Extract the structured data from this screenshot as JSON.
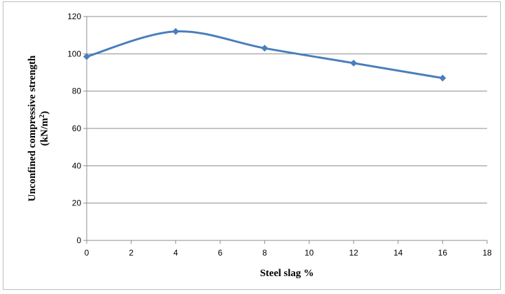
{
  "chart_data": {
    "type": "line",
    "smooth": true,
    "x": [
      0,
      4,
      8,
      12,
      16
    ],
    "series": [
      {
        "values": [
          98.5,
          112,
          103,
          95,
          87
        ],
        "color": "#4a7ebb",
        "marker": "diamond"
      }
    ],
    "xlabel": "Steel slag %",
    "ylabel_line1": "Unconfined  compressive strength",
    "ylabel_line2_base": "(kN/m",
    "ylabel_line2_sup": "2",
    "ylabel_line2_end": ")",
    "xlim": [
      0,
      18
    ],
    "ylim": [
      0,
      120
    ],
    "xticks": [
      0,
      2,
      4,
      6,
      8,
      10,
      12,
      14,
      16,
      18
    ],
    "yticks": [
      0,
      20,
      40,
      60,
      80,
      100,
      120
    ],
    "grid": "horizontal",
    "legend": "none"
  }
}
